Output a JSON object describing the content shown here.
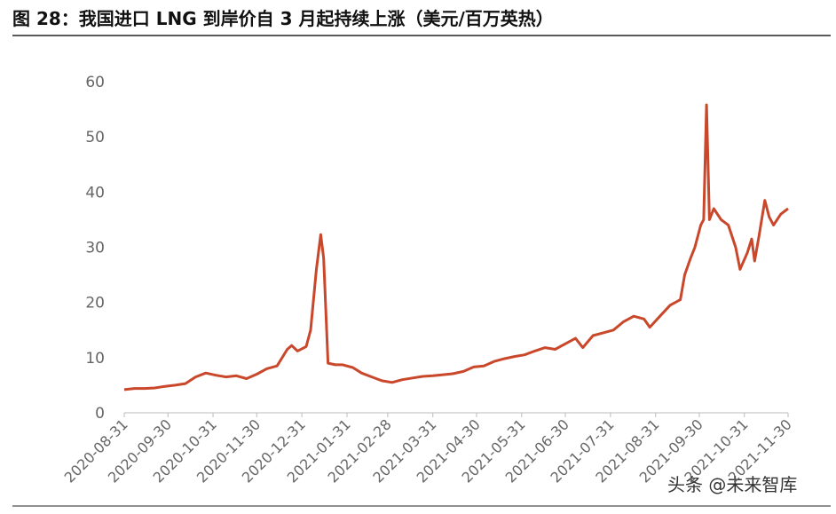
{
  "chart_data": {
    "type": "line",
    "title": "图 28：我国进口 LNG 到岸价自 3 月起持续上涨（美元/百万英热）",
    "watermark": "头条 @未来智库",
    "x": [
      "2020-08-31",
      "2020-09-07",
      "2020-09-14",
      "2020-09-21",
      "2020-09-28",
      "2020-10-05",
      "2020-10-12",
      "2020-10-19",
      "2020-10-26",
      "2020-11-02",
      "2020-11-09",
      "2020-11-16",
      "2020-11-23",
      "2020-11-30",
      "2020-12-07",
      "2020-12-14",
      "2020-12-21",
      "2020-12-24",
      "2020-12-28",
      "2021-01-03",
      "2021-01-06",
      "2021-01-10",
      "2021-01-13",
      "2021-01-15",
      "2021-01-18",
      "2021-01-23",
      "2021-01-28",
      "2021-02-04",
      "2021-02-10",
      "2021-02-17",
      "2021-02-24",
      "2021-03-03",
      "2021-03-10",
      "2021-03-17",
      "2021-03-24",
      "2021-03-31",
      "2021-04-07",
      "2021-04-14",
      "2021-04-21",
      "2021-04-28",
      "2021-05-05",
      "2021-05-12",
      "2021-05-19",
      "2021-05-26",
      "2021-06-02",
      "2021-06-09",
      "2021-06-16",
      "2021-06-23",
      "2021-06-30",
      "2021-07-07",
      "2021-07-12",
      "2021-07-19",
      "2021-07-26",
      "2021-08-02",
      "2021-08-09",
      "2021-08-16",
      "2021-08-23",
      "2021-08-27",
      "2021-09-03",
      "2021-09-10",
      "2021-09-17",
      "2021-09-20",
      "2021-09-24",
      "2021-09-27",
      "2021-10-01",
      "2021-10-03",
      "2021-10-05",
      "2021-10-07",
      "2021-10-10",
      "2021-10-15",
      "2021-10-20",
      "2021-10-25",
      "2021-10-28",
      "2021-11-02",
      "2021-11-05",
      "2021-11-07",
      "2021-11-10",
      "2021-11-14",
      "2021-11-17",
      "2021-11-20",
      "2021-11-25",
      "2021-11-30"
    ],
    "series": [
      {
        "name": "LNG",
        "color": "#c9472a",
        "values": [
          4.2,
          4.4,
          4.4,
          4.5,
          4.8,
          5.0,
          5.3,
          6.5,
          7.2,
          6.8,
          6.5,
          6.7,
          6.2,
          7.0,
          8.0,
          8.5,
          11.5,
          12.2,
          11.2,
          12.0,
          15,
          26,
          32.3,
          28,
          9.0,
          8.7,
          8.7,
          8.2,
          7.2,
          6.5,
          5.8,
          5.5,
          6.0,
          6.3,
          6.6,
          6.7,
          6.9,
          7.1,
          7.5,
          8.3,
          8.5,
          9.3,
          9.8,
          10.2,
          10.5,
          11.2,
          11.8,
          11.5,
          12.5,
          13.5,
          11.8,
          14,
          14.5,
          15,
          16.5,
          17.5,
          17,
          15.5,
          17.5,
          19.5,
          20.5,
          25,
          28,
          30,
          34,
          35,
          55.8,
          35,
          37,
          35,
          34,
          30,
          26,
          29,
          31.5,
          27.5,
          32,
          38.5,
          35.5,
          34,
          36,
          37
        ]
      }
    ],
    "xlim": [
      "2020-08-31",
      "2021-11-30"
    ],
    "xticks": [
      "2020-08-31",
      "2020-09-30",
      "2020-10-31",
      "2020-11-30",
      "2020-12-31",
      "2021-01-31",
      "2021-02-28",
      "2021-03-31",
      "2021-04-30",
      "2021-05-31",
      "2021-06-30",
      "2021-07-31",
      "2021-08-31",
      "2021-09-30",
      "2021-10-31",
      "2021-11-30"
    ],
    "ylim": [
      0,
      60
    ],
    "yticks": [
      0,
      10,
      20,
      30,
      40,
      50,
      60
    ],
    "grid": false
  }
}
